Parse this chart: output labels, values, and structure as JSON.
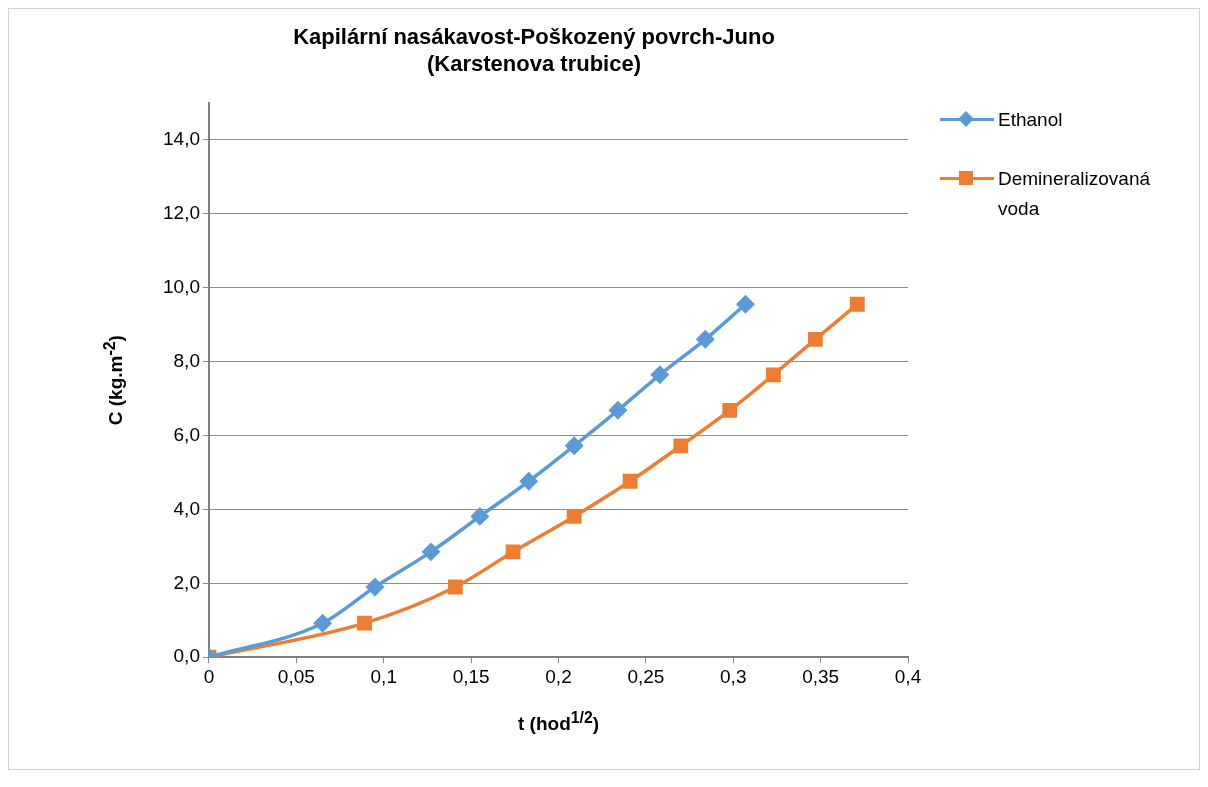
{
  "chart_data": {
    "type": "line",
    "title": "Kapilární nasákavost-Poškozený povrch-Juno\n(Karstenova trubice)",
    "xlabel": "t (hod$^{1/2}$)",
    "ylabel": "C (kg.m$^{-2}$)",
    "series": [
      {
        "name": "Ethanol",
        "color": "#5b9bd5",
        "marker": "diamond",
        "x": [
          0,
          0.065,
          0.095,
          0.127,
          0.155,
          0.183,
          0.209,
          0.234,
          0.258,
          0.284,
          0.307
        ],
        "values": [
          0,
          0.92,
          1.9,
          2.85,
          3.81,
          4.76,
          5.72,
          6.68,
          7.64,
          8.6,
          9.55
        ]
      },
      {
        "name": "Demineralizovaná voda",
        "color": "#ed7d31",
        "marker": "square",
        "x": [
          0,
          0.089,
          0.141,
          0.174,
          0.209,
          0.241,
          0.27,
          0.298,
          0.323,
          0.347,
          0.371
        ],
        "values": [
          0,
          0.92,
          1.9,
          2.85,
          3.81,
          4.76,
          5.72,
          6.68,
          7.64,
          8.6,
          9.55
        ]
      }
    ],
    "xlim": [
      0,
      0.4
    ],
    "xticks": [
      0,
      {
        "value": 0.05,
        "label": "0,05"
      },
      {
        "value": 0.1,
        "label": "0,1"
      },
      {
        "value": 0.15,
        "label": "0,15"
      },
      {
        "value": 0.2,
        "label": "0,2"
      },
      {
        "value": 0.25,
        "label": "0,25"
      },
      {
        "value": 0.3,
        "label": "0,3"
      },
      {
        "value": 0.35,
        "label": "0,35"
      },
      {
        "value": 0.4,
        "label": "0,4"
      }
    ],
    "ylim": [
      0,
      15
    ],
    "yticks": [
      {
        "value": 0,
        "label": "0,0"
      },
      {
        "value": 2,
        "label": "2,0"
      },
      {
        "value": 4,
        "label": "4,0"
      },
      {
        "value": 6,
        "label": "6,0"
      },
      {
        "value": 8,
        "label": "8,0"
      },
      {
        "value": 10,
        "label": "10,0"
      },
      {
        "value": 12,
        "label": "12,0"
      },
      {
        "value": 14,
        "label": "14,0"
      }
    ],
    "grid": "y",
    "legend": "top right",
    "line_style": "solid"
  }
}
